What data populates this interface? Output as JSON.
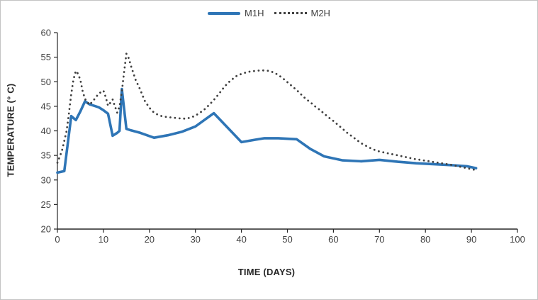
{
  "window": {
    "background": "#ffffff",
    "border_color": "#c3c3c3"
  },
  "legend": {
    "items": [
      {
        "label": "M1H",
        "style": "solid",
        "color": "#2e75b6"
      },
      {
        "label": "M2H",
        "style": "dotted",
        "color": "#404040"
      }
    ]
  },
  "chart_data": {
    "type": "line",
    "title": "",
    "xlabel": "TIME (DAYS)",
    "ylabel": "TEMPERATURE (° C)",
    "xlim": [
      0,
      100
    ],
    "ylim": [
      20,
      60
    ],
    "x_ticks": [
      0,
      10,
      20,
      30,
      40,
      50,
      60,
      70,
      80,
      90,
      100
    ],
    "y_ticks": [
      20,
      25,
      30,
      35,
      40,
      45,
      50,
      55,
      60
    ],
    "grid": false,
    "legend_position": "top-center",
    "axis_color": "#262626",
    "tick_label_color": "#404040",
    "series": [
      {
        "name": "M1H",
        "style": "solid",
        "color": "#2e75b6",
        "points": [
          [
            0,
            31.5
          ],
          [
            1.5,
            31.8
          ],
          [
            3,
            43.0
          ],
          [
            4,
            42.2
          ],
          [
            5,
            44.0
          ],
          [
            6,
            46.0
          ],
          [
            7,
            45.4
          ],
          [
            9,
            44.8
          ],
          [
            10,
            44.2
          ],
          [
            11,
            43.5
          ],
          [
            12,
            39.0
          ],
          [
            13,
            39.6
          ],
          [
            13.5,
            40.0
          ],
          [
            14,
            48.5
          ],
          [
            15,
            40.4
          ],
          [
            16,
            40.1
          ],
          [
            18,
            39.6
          ],
          [
            21,
            38.6
          ],
          [
            24,
            39.1
          ],
          [
            27,
            39.8
          ],
          [
            30,
            40.9
          ],
          [
            34,
            43.6
          ],
          [
            40,
            37.7
          ],
          [
            43,
            38.2
          ],
          [
            45,
            38.5
          ],
          [
            48,
            38.5
          ],
          [
            52,
            38.3
          ],
          [
            55,
            36.3
          ],
          [
            58,
            34.8
          ],
          [
            62,
            34.0
          ],
          [
            66,
            33.8
          ],
          [
            70,
            34.1
          ],
          [
            74,
            33.7
          ],
          [
            78,
            33.4
          ],
          [
            82,
            33.2
          ],
          [
            86,
            33.0
          ],
          [
            89,
            32.8
          ],
          [
            91,
            32.4
          ]
        ]
      },
      {
        "name": "M2H",
        "style": "dotted",
        "color": "#404040",
        "points": [
          [
            0,
            33.5
          ],
          [
            1,
            36.0
          ],
          [
            2,
            40.0
          ],
          [
            2.5,
            43.5
          ],
          [
            3,
            47.5
          ],
          [
            3.5,
            50.5
          ],
          [
            4,
            52.2
          ],
          [
            4.5,
            51.6
          ],
          [
            5,
            50.3
          ],
          [
            5.5,
            48.0
          ],
          [
            6,
            46.5
          ],
          [
            7,
            45.3
          ],
          [
            8,
            46.4
          ],
          [
            9,
            47.6
          ],
          [
            10,
            48.2
          ],
          [
            10.5,
            46.9
          ],
          [
            11,
            45.1
          ],
          [
            11.5,
            45.7
          ],
          [
            12,
            46.4
          ],
          [
            12.5,
            45.0
          ],
          [
            13,
            43.7
          ],
          [
            13.5,
            45.0
          ],
          [
            14,
            48.0
          ],
          [
            14.5,
            52.0
          ],
          [
            15,
            55.7
          ],
          [
            15.5,
            54.8
          ],
          [
            16,
            53.2
          ],
          [
            17,
            50.4
          ],
          [
            18,
            48.4
          ],
          [
            19,
            46.1
          ],
          [
            20,
            44.7
          ],
          [
            21,
            43.7
          ],
          [
            22,
            43.2
          ],
          [
            23,
            42.9
          ],
          [
            24,
            42.8
          ],
          [
            25,
            42.7
          ],
          [
            26,
            42.6
          ],
          [
            27,
            42.5
          ],
          [
            28,
            42.5
          ],
          [
            29,
            42.7
          ],
          [
            30,
            43.1
          ],
          [
            31,
            43.7
          ],
          [
            32,
            44.4
          ],
          [
            33,
            45.3
          ],
          [
            34,
            46.3
          ],
          [
            35,
            47.4
          ],
          [
            36,
            48.6
          ],
          [
            37,
            49.7
          ],
          [
            38,
            50.5
          ],
          [
            39,
            51.2
          ],
          [
            40,
            51.6
          ],
          [
            41,
            51.9
          ],
          [
            42,
            52.1
          ],
          [
            43,
            52.2
          ],
          [
            44,
            52.3
          ],
          [
            45,
            52.3
          ],
          [
            46,
            52.2
          ],
          [
            47,
            51.9
          ],
          [
            48,
            51.4
          ],
          [
            49,
            50.7
          ],
          [
            50,
            49.9
          ],
          [
            51,
            49.1
          ],
          [
            52,
            48.3
          ],
          [
            53,
            47.4
          ],
          [
            54,
            46.5
          ],
          [
            55,
            45.8
          ],
          [
            56,
            45.0
          ],
          [
            57,
            44.3
          ],
          [
            58,
            43.5
          ],
          [
            59,
            42.7
          ],
          [
            60,
            42.0
          ],
          [
            61,
            41.2
          ],
          [
            62,
            40.4
          ],
          [
            63,
            39.6
          ],
          [
            64,
            38.9
          ],
          [
            65,
            38.2
          ],
          [
            66,
            37.5
          ],
          [
            67,
            37.0
          ],
          [
            68,
            36.5
          ],
          [
            69,
            36.1
          ],
          [
            70,
            35.8
          ],
          [
            71,
            35.6
          ],
          [
            72,
            35.4
          ],
          [
            73,
            35.2
          ],
          [
            74,
            35.0
          ],
          [
            75,
            34.8
          ],
          [
            76,
            34.6
          ],
          [
            77,
            34.4
          ],
          [
            78,
            34.2
          ],
          [
            79,
            34.1
          ],
          [
            80,
            33.9
          ],
          [
            81,
            33.8
          ],
          [
            82,
            33.6
          ],
          [
            83,
            33.5
          ],
          [
            84,
            33.3
          ],
          [
            85,
            33.2
          ],
          [
            86,
            33.0
          ],
          [
            87,
            32.8
          ],
          [
            88,
            32.6
          ],
          [
            89,
            32.4
          ],
          [
            90,
            32.2
          ],
          [
            91,
            32.0
          ]
        ]
      }
    ]
  }
}
